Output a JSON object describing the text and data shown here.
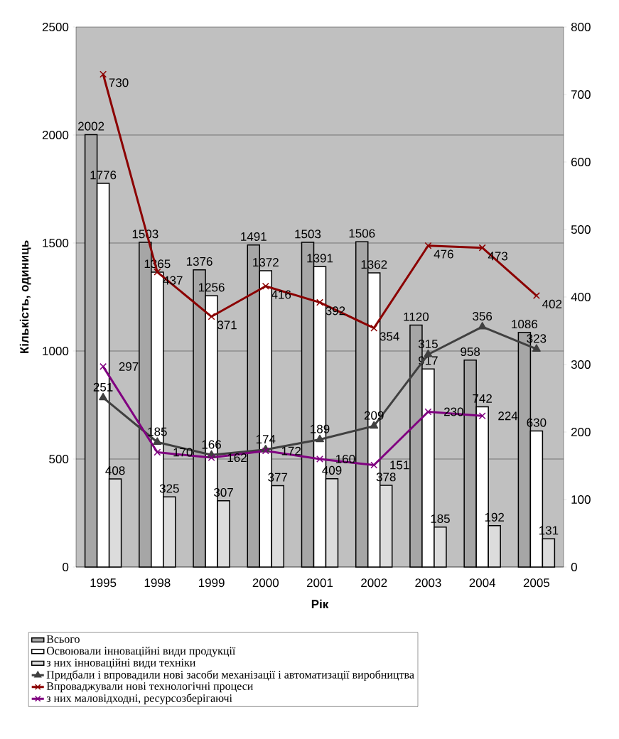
{
  "chart_data": {
    "type": "bar",
    "xlabel": "Рік",
    "ylabel": "Кількість, одиниць",
    "categories": [
      "1995",
      "1998",
      "1999",
      "2000",
      "2001",
      "2002",
      "2003",
      "2004",
      "2005"
    ],
    "series": [
      {
        "name": "Всього",
        "color": "#a6a6a6",
        "values": [
          2002,
          1503,
          1376,
          1491,
          1503,
          1506,
          1120,
          958,
          1086
        ]
      },
      {
        "name": "Освоювали інноваційні види продукції",
        "color": "#ffffff",
        "values": [
          1776,
          1365,
          1256,
          1372,
          1391,
          1362,
          917,
          742,
          630
        ]
      },
      {
        "name": "з них інноваційні види техніки",
        "color": "#dcdcdc",
        "values": [
          408,
          325,
          307,
          377,
          409,
          378,
          185,
          192,
          131
        ]
      },
      {
        "name": "Придбали і впровадили нові засоби механізації і автоматизації виробництва",
        "type": "line",
        "axis": "y2",
        "marker": "triangle",
        "color": "#404040",
        "values": [
          251,
          185,
          166,
          174,
          189,
          209,
          315,
          356,
          323
        ]
      },
      {
        "name": "Впроваджували нові технологічні процеси",
        "type": "line",
        "axis": "y2",
        "marker": "cross",
        "color": "#8b0000",
        "values": [
          730,
          437,
          371,
          416,
          392,
          354,
          476,
          473,
          402
        ]
      },
      {
        "name": "з них маловідходні, ресурсозберігаючі",
        "type": "line",
        "axis": "y2",
        "marker": "cross",
        "color": "#800080",
        "values": [
          297,
          170,
          162,
          172,
          160,
          151,
          230,
          224,
          null
        ]
      }
    ],
    "ylim": [
      0,
      2500
    ],
    "yticks": [
      0,
      500,
      1000,
      1500,
      2000,
      2500
    ],
    "y2lim": [
      0,
      800
    ],
    "y2ticks": [
      0,
      100,
      200,
      300,
      400,
      500,
      600,
      700,
      800
    ],
    "grid": "y",
    "legend": "bottom",
    "data_labels": true
  }
}
